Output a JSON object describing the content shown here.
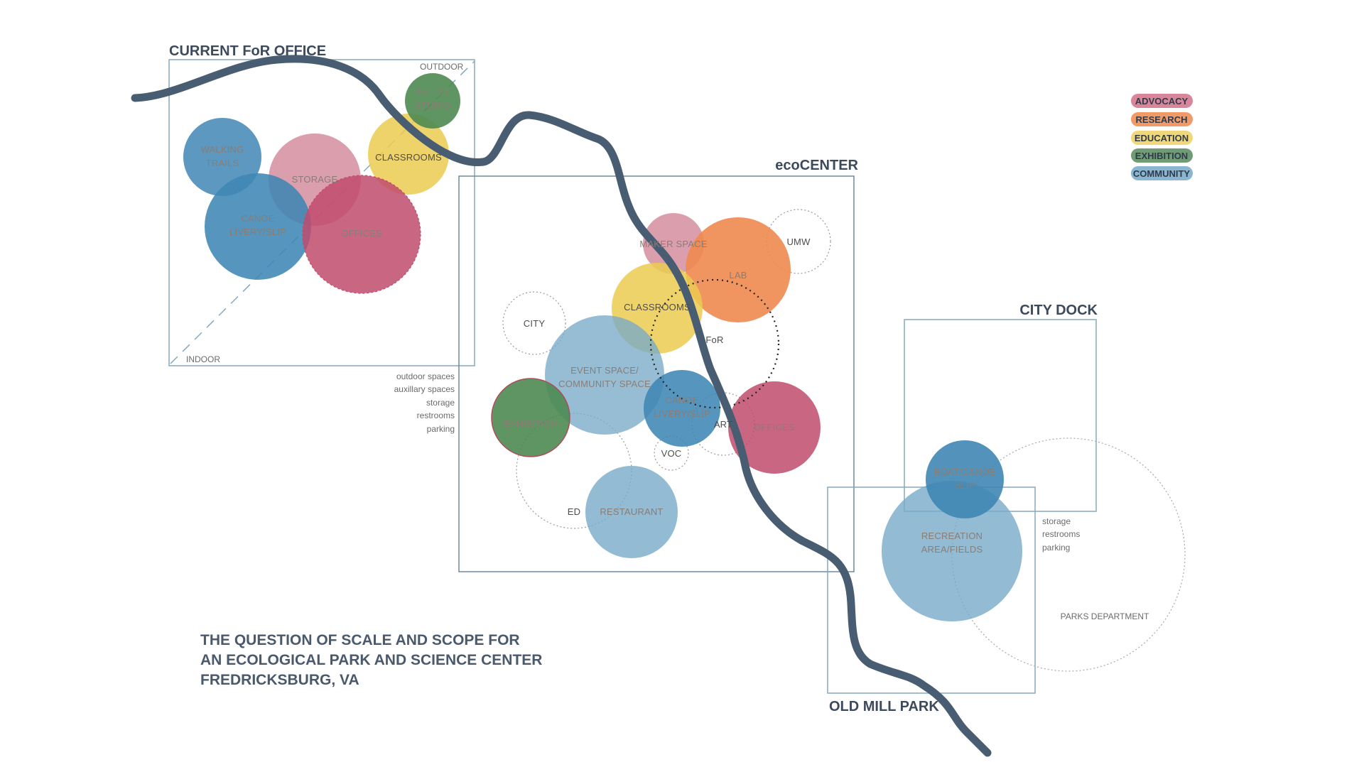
{
  "colors": {
    "advocacy": "#cf7e92",
    "research": "#ee8a4f",
    "education": "#ebcb50",
    "exhibition": "#4c8a52",
    "community": "#78aac8",
    "community_dark": "#3f86b4",
    "offices": "#c04b6c",
    "river": "#485c72",
    "frame": "#7ea2b6"
  },
  "zones": {
    "current_office": {
      "title": "CURRENT FoR OFFICE",
      "outdoor": "OUTDOOR",
      "indoor": "INDOOR"
    },
    "ecocenter": {
      "title": "ecoCENTER"
    },
    "city_dock": {
      "title": "CITY DOCK"
    },
    "old_mill_park": {
      "title": "OLD MILL PARK"
    }
  },
  "office_bubbles": {
    "artist_studio": [
      "ARTIST",
      "STUDIO"
    ],
    "walking_trails": [
      "WALKING",
      "TRAILS"
    ],
    "storage": [
      "STORAGE"
    ],
    "classrooms": [
      "CLASSROOMS"
    ],
    "canoe_livery": [
      "CANOE",
      "LIVERY/SLIP"
    ],
    "offices": [
      "OFFICES"
    ]
  },
  "office_notes": [
    "outdoor spaces",
    "auxillary spaces",
    "storage",
    "restrooms",
    "parking"
  ],
  "eco_bubbles": {
    "maker_space": [
      "MAKER SPACE"
    ],
    "lab": [
      "LAB"
    ],
    "umw": [
      "UMW"
    ],
    "classrooms": [
      "CLASSROOMS"
    ],
    "city": [
      "CITY"
    ],
    "for": [
      "FoR"
    ],
    "event_space": [
      "EVENT SPACE/",
      "COMMUNITY SPACE"
    ],
    "canoe_livery": [
      "CANOE",
      "LIVERY/SLIP"
    ],
    "art": [
      "ART"
    ],
    "exhibition": [
      "EXHIBITION"
    ],
    "offices": [
      "OFFICES"
    ],
    "voc": [
      "VOC"
    ],
    "ed": [
      "ED"
    ],
    "restaurant": [
      "RESTAURANT"
    ]
  },
  "park_bubbles": {
    "boat_canoe": [
      "BOAT/CANOE",
      "SLIP"
    ],
    "recreation": [
      "RECREATION",
      "AREA/FIELDS"
    ],
    "parks_department": [
      "PARKS DEPARTMENT"
    ]
  },
  "park_notes": [
    "storage",
    "restrooms",
    "parking"
  ],
  "legend": [
    {
      "label": "ADVOCACY",
      "color": "#d9869b"
    },
    {
      "label": "RESEARCH",
      "color": "#f09a68"
    },
    {
      "label": "EDUCATION",
      "color": "#efd77a"
    },
    {
      "label": "EXHIBITION",
      "color": "#6f9c74"
    },
    {
      "label": "COMMUNITY",
      "color": "#8ab6d2"
    }
  ],
  "caption": [
    "THE QUESTION OF SCALE AND SCOPE FOR",
    "AN ECOLOGICAL PARK AND SCIENCE CENTER",
    "FREDRICKSBURG, VA"
  ]
}
